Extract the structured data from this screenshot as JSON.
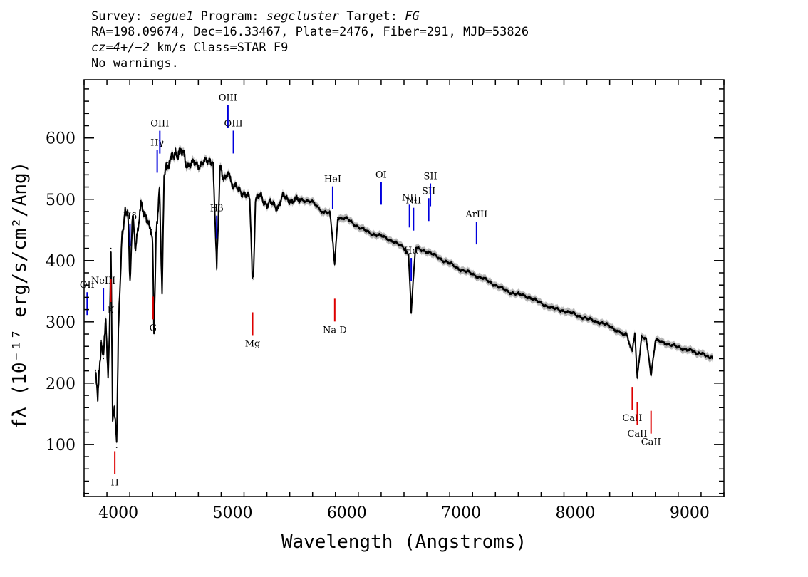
{
  "header": {
    "line1": {
      "survey_label": "Survey:",
      "survey_value": "segue1",
      "program_label": "Program:",
      "program_value": "segcluster",
      "target_label": "Target:",
      "target_value": "FG"
    },
    "line2": "RA=198.09674, Dec=16.33467, Plate=2476, Fiber=291, MJD=53826",
    "line3": {
      "cz_value": "cz=4+/−2",
      "cz_rest": " km/s Class=STAR F9"
    },
    "line4": "No warnings."
  },
  "chart_data": {
    "type": "line",
    "xlabel": "Wavelength (Angstroms)",
    "ylabel": "fλ (10⁻¹⁷ erg/s/cm²/Ang)",
    "xlim": [
      3700,
      9300
    ],
    "ylim": [
      15,
      695
    ],
    "x_ticks": [
      4000,
      5000,
      6000,
      7000,
      8000,
      9000
    ],
    "y_ticks": [
      100,
      200,
      300,
      400,
      500,
      600
    ],
    "colors": {
      "spectrum": "#000000",
      "error": "#b4b4b4",
      "emission": "#0000dd",
      "absorption": "#dd0000"
    },
    "series": [
      {
        "name": "",
        "x": [
          3800,
          3820,
          3850,
          3870,
          3890,
          3910,
          3925,
          3935,
          3950,
          3965,
          3985,
          4000,
          4030,
          4060,
          4085,
          4102,
          4125,
          4150,
          4200,
          4250,
          4290,
          4300,
          4312,
          4330,
          4360,
          4383,
          4400,
          4430,
          4470,
          4500,
          4550,
          4600,
          4650,
          4700,
          4750,
          4800,
          4830,
          4861,
          4890,
          4920,
          4960,
          5000,
          5050,
          5100,
          5150,
          5172,
          5183,
          5200,
          5250,
          5300,
          5350,
          5400,
          5450,
          5500,
          5600,
          5700,
          5800,
          5850,
          5875,
          5893,
          5920,
          6000,
          6100,
          6200,
          6300,
          6400,
          6500,
          6540,
          6563,
          6600,
          6700,
          6800,
          6900,
          7000,
          7100,
          7200,
          7300,
          7400,
          7500,
          7600,
          7700,
          7800,
          7900,
          8000,
          8100,
          8200,
          8300,
          8400,
          8450,
          8498,
          8520,
          8542,
          8580,
          8620,
          8662,
          8700,
          8800,
          8900,
          9000,
          9050,
          9100,
          9150,
          9200
        ],
        "values": [
          220,
          180,
          270,
          240,
          300,
          210,
          310,
          420,
          150,
          160,
          95,
          280,
          430,
          480,
          470,
          372,
          470,
          420,
          490,
          470,
          450,
          430,
          282,
          440,
          520,
          350,
          540,
          560,
          565,
          575,
          580,
          555,
          560,
          555,
          560,
          565,
          560,
          385,
          555,
          530,
          540,
          525,
          515,
          510,
          500,
          375,
          370,
          500,
          505,
          490,
          495,
          485,
          510,
          495,
          500,
          495,
          478,
          480,
          435,
          393,
          470,
          468,
          455,
          445,
          440,
          432,
          420,
          410,
          316,
          420,
          415,
          405,
          395,
          385,
          378,
          370,
          360,
          350,
          345,
          340,
          330,
          322,
          318,
          312,
          305,
          300,
          293,
          282,
          278,
          252,
          280,
          208,
          275,
          272,
          213,
          270,
          265,
          258,
          254,
          250,
          248,
          245,
          240
        ]
      }
    ],
    "lines": [
      {
        "label": "OII",
        "wavelength": 3727,
        "kind": "emission"
      },
      {
        "label": "NeIII",
        "wavelength": 3869,
        "kind": "emission"
      },
      {
        "label": "K",
        "wavelength": 3934,
        "kind": "absorption"
      },
      {
        "label": "H",
        "wavelength": 3969,
        "kind": "absorption"
      },
      {
        "label": "Hδ",
        "wavelength": 4102,
        "kind": "emission"
      },
      {
        "label": "Hγ",
        "wavelength": 4340,
        "kind": "emission"
      },
      {
        "label": "G",
        "wavelength": 4304,
        "kind": "absorption"
      },
      {
        "label": "OIII",
        "wavelength": 4363,
        "kind": "emission"
      },
      {
        "label": "Hβ",
        "wavelength": 4861,
        "kind": "emission"
      },
      {
        "label": "OIII",
        "wavelength": 4959,
        "kind": "emission"
      },
      {
        "label": "OIII",
        "wavelength": 5007,
        "kind": "emission"
      },
      {
        "label": "Mg",
        "wavelength": 5175,
        "kind": "absorption"
      },
      {
        "label": "HeI",
        "wavelength": 5876,
        "kind": "emission"
      },
      {
        "label": "Na D",
        "wavelength": 5894,
        "kind": "absorption"
      },
      {
        "label": "OI",
        "wavelength": 6300,
        "kind": "emission"
      },
      {
        "label": "NII",
        "wavelength": 6548,
        "kind": "emission"
      },
      {
        "label": "Hα",
        "wavelength": 6563,
        "kind": "emission"
      },
      {
        "label": "NII",
        "wavelength": 6583,
        "kind": "emission"
      },
      {
        "label": "SII",
        "wavelength": 6716,
        "kind": "emission"
      },
      {
        "label": "SII",
        "wavelength": 6731,
        "kind": "emission"
      },
      {
        "label": "ArIII",
        "wavelength": 7135,
        "kind": "emission"
      },
      {
        "label": "CaII",
        "wavelength": 8498,
        "kind": "absorption"
      },
      {
        "label": "CaII",
        "wavelength": 8542,
        "kind": "absorption"
      },
      {
        "label": "CaII",
        "wavelength": 8662,
        "kind": "absorption"
      }
    ]
  }
}
